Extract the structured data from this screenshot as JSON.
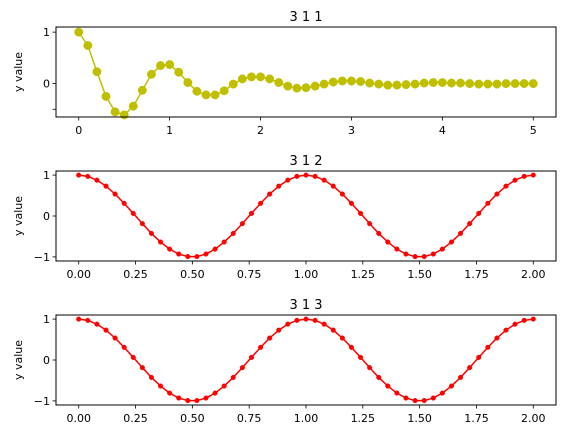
{
  "chart_data": [
    {
      "type": "line",
      "title": "3 1 1",
      "xlabel": "",
      "ylabel": "y value",
      "xlim": [
        -0.25,
        5.25
      ],
      "ylim": [
        -0.65,
        1.1
      ],
      "xticks": [
        0,
        1,
        2,
        3,
        4,
        5
      ],
      "xtick_labels": [
        "0",
        "1",
        "2",
        "3",
        "4",
        "5"
      ],
      "yticks": [
        -0.5,
        0,
        1
      ],
      "ytick_labels": [
        "",
        "0",
        "1"
      ],
      "grid": false,
      "marker": "circle-large",
      "series": [
        {
          "color": "#bfbf00",
          "x": [
            0,
            0.1,
            0.2,
            0.3,
            0.4,
            0.5,
            0.6,
            0.7,
            0.8,
            0.9,
            1.0,
            1.1,
            1.2,
            1.3,
            1.4,
            1.5,
            1.6,
            1.7,
            1.8,
            1.9,
            2.0,
            2.1,
            2.2,
            2.3,
            2.4,
            2.5,
            2.6,
            2.7,
            2.8,
            2.9,
            3.0,
            3.1,
            3.2,
            3.3,
            3.4,
            3.5,
            3.6,
            3.7,
            3.8,
            3.9,
            4.0,
            4.1,
            4.2,
            4.3,
            4.4,
            4.5,
            4.6,
            4.7,
            4.8,
            4.9,
            5.0
          ],
          "values": [
            1.0,
            0.74,
            0.23,
            -0.25,
            -0.55,
            -0.61,
            -0.44,
            -0.13,
            0.18,
            0.35,
            0.37,
            0.22,
            0.02,
            -0.15,
            -0.22,
            -0.22,
            -0.14,
            -0.01,
            0.09,
            0.13,
            0.13,
            0.09,
            0.02,
            -0.05,
            -0.09,
            -0.08,
            -0.05,
            -0.01,
            0.03,
            0.05,
            0.05,
            0.04,
            0.01,
            -0.01,
            -0.03,
            -0.03,
            -0.02,
            -0.01,
            0.01,
            0.02,
            0.02,
            0.01,
            0.01,
            0.0,
            -0.01,
            -0.01,
            -0.01,
            0.0,
            0.0,
            0.0,
            0.0
          ]
        }
      ]
    },
    {
      "type": "line",
      "title": "3 1 2",
      "xlabel": "",
      "ylabel": "y value",
      "xlim": [
        -0.1,
        2.1
      ],
      "ylim": [
        -1.1,
        1.1
      ],
      "xticks": [
        0,
        0.25,
        0.5,
        0.75,
        1.0,
        1.25,
        1.5,
        1.75,
        2.0
      ],
      "xtick_labels": [
        "0.00",
        "0.25",
        "0.50",
        "0.75",
        "1.00",
        "1.25",
        "1.50",
        "1.75",
        "2.00"
      ],
      "yticks": [
        -1,
        0,
        1
      ],
      "ytick_labels": [
        "−1",
        "0",
        "1"
      ],
      "grid": false,
      "marker": "circle-small",
      "series": [
        {
          "color": "#ff0000",
          "x": [
            0,
            0.04,
            0.08,
            0.12,
            0.16,
            0.2,
            0.24,
            0.28,
            0.32,
            0.36,
            0.4,
            0.44,
            0.48,
            0.52,
            0.56,
            0.6,
            0.64,
            0.68,
            0.72,
            0.76,
            0.8,
            0.84,
            0.88,
            0.92,
            0.96,
            1.0,
            1.04,
            1.08,
            1.12,
            1.16,
            1.2,
            1.24,
            1.28,
            1.32,
            1.36,
            1.4,
            1.44,
            1.48,
            1.52,
            1.56,
            1.6,
            1.64,
            1.68,
            1.72,
            1.76,
            1.8,
            1.84,
            1.88,
            1.92,
            1.96,
            2.0
          ],
          "values": [
            1.0,
            0.969,
            0.876,
            0.729,
            0.536,
            0.309,
            0.063,
            -0.187,
            -0.426,
            -0.637,
            -0.809,
            -0.93,
            -0.992,
            -0.992,
            -0.93,
            -0.809,
            -0.637,
            -0.426,
            -0.187,
            0.063,
            0.309,
            0.536,
            0.729,
            0.876,
            0.969,
            1.0,
            0.969,
            0.876,
            0.729,
            0.536,
            0.309,
            0.063,
            -0.187,
            -0.426,
            -0.637,
            -0.809,
            -0.93,
            -0.992,
            -0.992,
            -0.93,
            -0.809,
            -0.637,
            -0.426,
            -0.187,
            0.063,
            0.309,
            0.536,
            0.729,
            0.876,
            0.969,
            1.0
          ]
        }
      ]
    },
    {
      "type": "line",
      "title": "3 1 3",
      "xlabel": "",
      "ylabel": "y value",
      "xlim": [
        -0.1,
        2.1
      ],
      "ylim": [
        -1.1,
        1.1
      ],
      "xticks": [
        0,
        0.25,
        0.5,
        0.75,
        1.0,
        1.25,
        1.5,
        1.75,
        2.0
      ],
      "xtick_labels": [
        "0.00",
        "0.25",
        "0.50",
        "0.75",
        "1.00",
        "1.25",
        "1.50",
        "1.75",
        "2.00"
      ],
      "yticks": [
        -1,
        0,
        1
      ],
      "ytick_labels": [
        "−1",
        "0",
        "1"
      ],
      "grid": false,
      "marker": "circle-small",
      "series": [
        {
          "color": "#ff0000",
          "x": [
            0,
            0.04,
            0.08,
            0.12,
            0.16,
            0.2,
            0.24,
            0.28,
            0.32,
            0.36,
            0.4,
            0.44,
            0.48,
            0.52,
            0.56,
            0.6,
            0.64,
            0.68,
            0.72,
            0.76,
            0.8,
            0.84,
            0.88,
            0.92,
            0.96,
            1.0,
            1.04,
            1.08,
            1.12,
            1.16,
            1.2,
            1.24,
            1.28,
            1.32,
            1.36,
            1.4,
            1.44,
            1.48,
            1.52,
            1.56,
            1.6,
            1.64,
            1.68,
            1.72,
            1.76,
            1.8,
            1.84,
            1.88,
            1.92,
            1.96,
            2.0
          ],
          "values": [
            1.0,
            0.969,
            0.876,
            0.729,
            0.536,
            0.309,
            0.063,
            -0.187,
            -0.426,
            -0.637,
            -0.809,
            -0.93,
            -0.992,
            -0.992,
            -0.93,
            -0.809,
            -0.637,
            -0.426,
            -0.187,
            0.063,
            0.309,
            0.536,
            0.729,
            0.876,
            0.969,
            1.0,
            0.969,
            0.876,
            0.729,
            0.536,
            0.309,
            0.063,
            -0.187,
            -0.426,
            -0.637,
            -0.809,
            -0.93,
            -0.992,
            -0.992,
            -0.93,
            -0.809,
            -0.637,
            -0.426,
            -0.187,
            0.063,
            0.309,
            0.536,
            0.729,
            0.876,
            0.969,
            1.0
          ]
        }
      ]
    }
  ]
}
